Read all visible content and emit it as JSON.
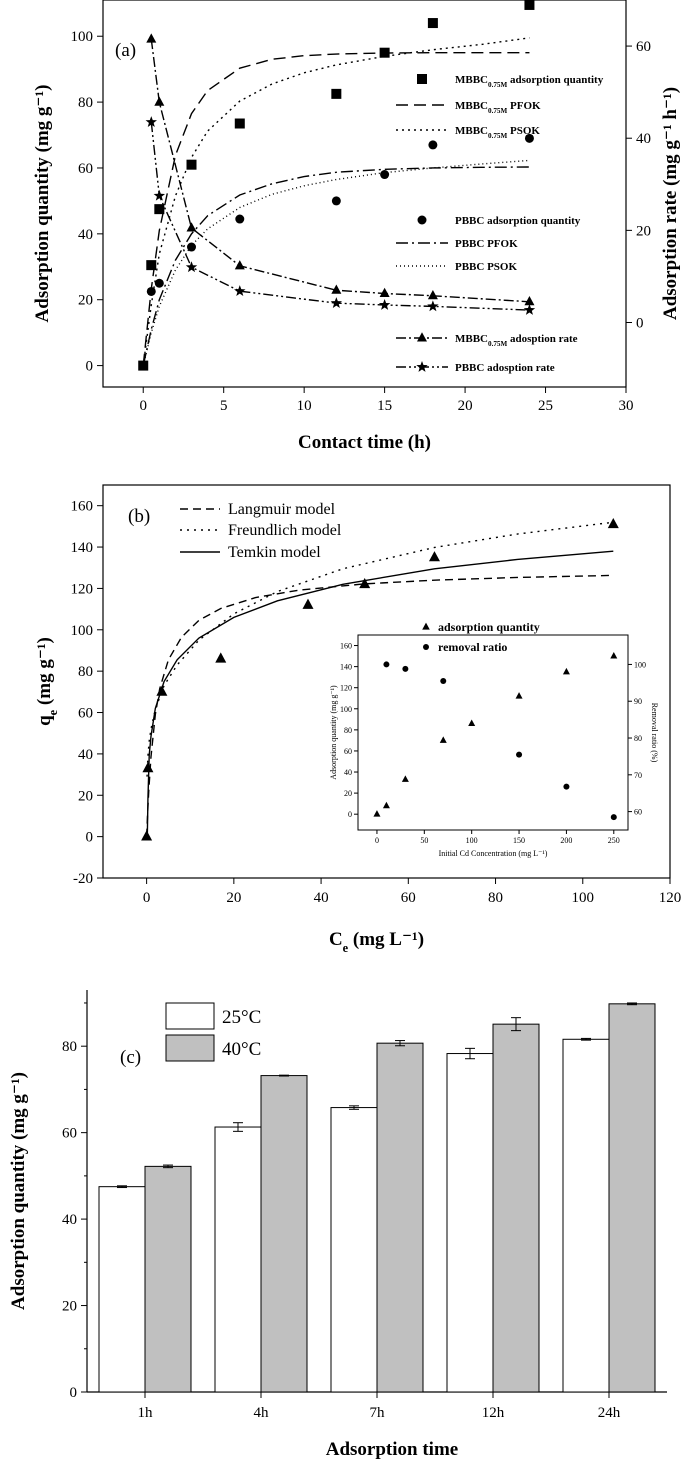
{
  "chart_data": [
    {
      "type": "scatter",
      "panel_label": "(a)",
      "xlabel": "Contact time (h)",
      "ylabel": "Adsorption quantity (mg g⁻¹)",
      "y2label": "Adsorption rate (mg g⁻¹ h⁻¹)",
      "xlim": [
        -2.5,
        30
      ],
      "ylim": [
        -6.5,
        111
      ],
      "y2lim": [
        -14,
        70
      ],
      "xticks": [
        0,
        5,
        10,
        15,
        20,
        25,
        30
      ],
      "yticks": [
        0,
        20,
        40,
        60,
        80,
        100
      ],
      "y2ticks": [
        0,
        20,
        40,
        60
      ],
      "legend_position": "right",
      "series": [
        {
          "name": "MBBC",
          "name_sub": "0.75M",
          "name_rest": " adsorption quantity",
          "kind": "points",
          "marker": "square",
          "axis": "left",
          "x": [
            0,
            0.5,
            1,
            3,
            6,
            12,
            15,
            18,
            24
          ],
          "y": [
            0,
            30.5,
            47.5,
            61,
            73.5,
            82.5,
            95,
            104,
            109.5
          ]
        },
        {
          "name": "MBBC",
          "name_sub": "0.75M",
          "name_rest": " PFOK",
          "kind": "line",
          "dash": "12,6",
          "axis": "left",
          "x": [
            0,
            0.5,
            1,
            2,
            3,
            4,
            6,
            8,
            10,
            12,
            15,
            18,
            21,
            24
          ],
          "y": [
            0,
            23.3,
            41,
            63.8,
            76.5,
            83.5,
            90.3,
            93,
            94.1,
            94.6,
            94.9,
            95,
            95,
            95
          ]
        },
        {
          "name": "MBBC",
          "name_sub": "0.75M",
          "name_rest": " PSOK",
          "kind": "line",
          "dash": "2,4",
          "axis": "left",
          "x": [
            0,
            0.5,
            1,
            2,
            3,
            4,
            6,
            8,
            10,
            12,
            15,
            18,
            21,
            24
          ],
          "y": [
            0,
            18.4,
            33.9,
            51.5,
            63.2,
            71.2,
            80.3,
            85.5,
            88.9,
            91.3,
            93.9,
            95.9,
            97.5,
            99.5
          ]
        },
        {
          "name": "PBBC adsorption quantity",
          "kind": "points",
          "marker": "circle",
          "axis": "left",
          "x": [
            0,
            0.5,
            1,
            3,
            6,
            12,
            15,
            18,
            24
          ],
          "y": [
            0,
            22.5,
            25,
            36,
            44.5,
            50,
            58,
            67,
            69
          ]
        },
        {
          "name": "PBBC PFOK",
          "kind": "line",
          "dash": "12,4,2,4",
          "axis": "left",
          "x": [
            0,
            0.5,
            1,
            2,
            3,
            4,
            6,
            8,
            10,
            12,
            15,
            18,
            21,
            24
          ],
          "y": [
            0,
            11,
            20,
            32,
            40,
            45.5,
            51.8,
            55.2,
            57.4,
            58.7,
            59.6,
            60,
            60.2,
            60.3
          ]
        },
        {
          "name": "PBBC PSOK",
          "kind": "line",
          "dash": "1,3",
          "axis": "left",
          "x": [
            0,
            0.5,
            1,
            2,
            3,
            4,
            6,
            8,
            10,
            12,
            15,
            18,
            21,
            24
          ],
          "y": [
            0,
            10,
            18,
            29,
            36.5,
            41.5,
            48,
            52,
            54.6,
            56.5,
            58.6,
            60,
            61.2,
            62.3
          ]
        },
        {
          "name": "MBBC",
          "name_sub": "0.75M",
          "name_rest": " adosption rate",
          "kind": "pointsline",
          "marker": "triangle",
          "dash": "10,3,2,3",
          "axis": "right",
          "x": [
            0.5,
            1,
            3,
            6,
            12,
            15,
            18,
            24
          ],
          "y": [
            61.5,
            47.8,
            20.5,
            12.3,
            7,
            6.3,
            5.8,
            4.5
          ]
        },
        {
          "name": "PBBC  adosption rate",
          "kind": "pointsline",
          "marker": "star",
          "dash": "10,3,2,3,2,3",
          "axis": "right",
          "x": [
            0.5,
            1,
            3,
            6,
            12,
            15,
            18,
            24
          ],
          "y": [
            43.5,
            27.5,
            12,
            6.8,
            4.2,
            3.8,
            3.5,
            2.7
          ]
        }
      ]
    },
    {
      "type": "scatter",
      "panel_label": "(b)",
      "xlabel": "C",
      "xlabel_sub": "e",
      "xlabel_rest": " (mg L⁻¹)",
      "ylabel": "q",
      "ylabel_sub": "e",
      "ylabel_rest": " (mg g⁻¹)",
      "xlim": [
        -10,
        120
      ],
      "ylim": [
        -20,
        170
      ],
      "xticks": [
        0,
        20,
        40,
        60,
        80,
        100,
        120
      ],
      "yticks": [
        -20,
        0,
        20,
        40,
        60,
        80,
        100,
        120,
        140,
        160
      ],
      "legend_position": "top-left",
      "series": [
        {
          "name": "data",
          "kind": "points",
          "marker": "triangle",
          "x": [
            0,
            0.3,
            3.5,
            17,
            37,
            50,
            66,
            107
          ],
          "y": [
            0,
            33,
            70,
            86,
            112,
            122,
            135,
            151
          ]
        },
        {
          "name": "Langmuir model",
          "kind": "line",
          "dash": "8,5",
          "x": [
            0,
            0.2,
            0.5,
            1,
            2,
            3,
            5,
            8,
            12,
            17,
            25,
            35,
            50,
            66,
            85,
            107
          ],
          "y": [
            0,
            9.8,
            22.5,
            38.6,
            59.1,
            71.5,
            85.5,
            96.4,
            104.6,
            110.3,
            115.6,
            119.2,
            122.2,
            124,
            125.3,
            126.3
          ]
        },
        {
          "name": "Freundlich model",
          "kind": "line",
          "dash": "2,5",
          "x": [
            0.1,
            0.3,
            0.6,
            1,
            2,
            4,
            7,
            12,
            20,
            30,
            45,
            66,
            85,
            107
          ],
          "y": [
            29,
            39,
            46.3,
            52,
            61.6,
            73,
            83,
            95,
            107.7,
            118.5,
            129.5,
            139.8,
            146.3,
            152
          ]
        },
        {
          "name": "Temkin model",
          "kind": "line",
          "dash": "",
          "x": [
            0.16,
            0.3,
            0.6,
            1,
            2,
            4,
            7,
            12,
            20,
            30,
            45,
            66,
            85,
            107
          ],
          "y": [
            0,
            18,
            39.5,
            48.5,
            62,
            75,
            85.5,
            96,
            106,
            114,
            122,
            129.5,
            134,
            138
          ]
        }
      ]
    },
    {
      "type": "scatter",
      "inset": true,
      "xlabel": "Initial Cd Concentration (mg L⁻¹)",
      "ylabel": "Adsorption quantity (mg g⁻¹)",
      "y2label": "Removal ratio (%)",
      "xlim": [
        -20,
        265
      ],
      "ylim": [
        -15,
        170
      ],
      "y2lim": [
        55,
        108
      ],
      "xticks": [
        0,
        50,
        100,
        150,
        200,
        250
      ],
      "yticks": [
        0,
        20,
        40,
        60,
        80,
        100,
        120,
        140,
        160
      ],
      "y2ticks": [
        60,
        70,
        80,
        90,
        100
      ],
      "legend_position": "top",
      "series": [
        {
          "name": "adsorption quantity",
          "kind": "points",
          "marker": "triangle",
          "axis": "left",
          "x": [
            0,
            10,
            30,
            70,
            100,
            150,
            200,
            250
          ],
          "y": [
            0,
            8,
            33,
            70,
            86,
            112,
            135,
            150
          ]
        },
        {
          "name": "removal ratio",
          "kind": "points",
          "marker": "circle",
          "axis": "right",
          "x": [
            10,
            30,
            70,
            150,
            200,
            250
          ],
          "y": [
            100,
            98.8,
            95.5,
            75.5,
            66.8,
            58.5
          ]
        }
      ]
    },
    {
      "type": "bar",
      "panel_label": "(c)",
      "xlabel": "Adsorption time",
      "ylabel": "Adsorption quantity (mg g⁻¹)",
      "categories": [
        "1h",
        "4h",
        "7h",
        "12h",
        "24h"
      ],
      "ylim": [
        0,
        93
      ],
      "yticks": [
        0,
        20,
        40,
        60,
        80
      ],
      "legend_position": "top-left",
      "series": [
        {
          "name": "25°C",
          "values": [
            47.5,
            61.3,
            65.8,
            78.3,
            81.6
          ],
          "errors": [
            0.2,
            1.0,
            0.4,
            1.2,
            0.2
          ],
          "color": "#ffffff"
        },
        {
          "name": "40°C",
          "values": [
            52.2,
            73.2,
            80.7,
            85.1,
            89.8
          ],
          "errors": [
            0.3,
            0.1,
            0.6,
            1.5,
            0.2
          ],
          "color": "#c0c0c0"
        }
      ]
    }
  ]
}
